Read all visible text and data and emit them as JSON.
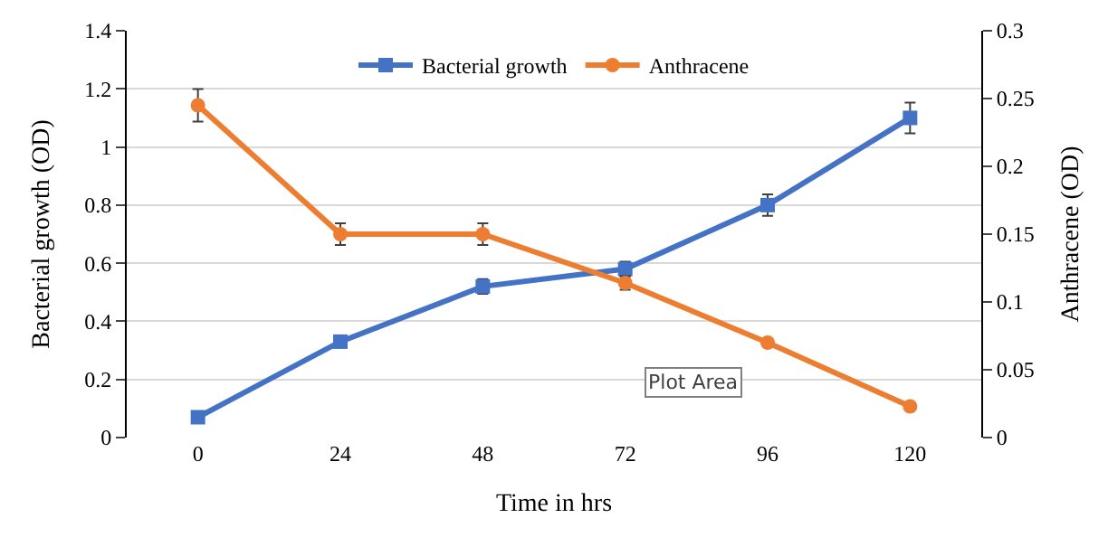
{
  "chart_data": {
    "type": "line",
    "categories": [
      "0",
      "24",
      "48",
      "72",
      "96",
      "120"
    ],
    "xlabel": "Time in hrs",
    "ylabel": "Bacterial growth (OD)",
    "y2label": "Anthracene (OD)",
    "series": [
      {
        "name": "Bacterial growth",
        "color": "#4472c4",
        "marker": "square",
        "values": [
          0.07,
          0.33,
          0.52,
          0.58,
          0.8,
          1.1
        ],
        "errors": [
          null,
          null,
          0.025,
          0.025,
          0.037,
          0.053
        ]
      },
      {
        "name": "Anthracene",
        "color": "#ed7d31",
        "marker": "circle",
        "axis": "y2",
        "values": [
          0.245,
          0.15,
          0.15,
          0.114,
          0.07,
          0.023
        ],
        "errors": [
          0.012,
          0.008,
          0.008,
          0.005,
          null,
          null
        ]
      }
    ],
    "ylim": [
      0,
      1.4
    ],
    "yticks": [
      0,
      0.2,
      0.4,
      0.6,
      0.8,
      1,
      1.2,
      1.4
    ],
    "y2lim": [
      0,
      0.3
    ],
    "y2ticks": [
      0,
      0.05,
      0.1,
      0.15,
      0.2,
      0.25,
      0.3
    ],
    "grid": "y",
    "legend": "top",
    "line_style": "solid",
    "annotations": [
      "Plot Area"
    ]
  }
}
